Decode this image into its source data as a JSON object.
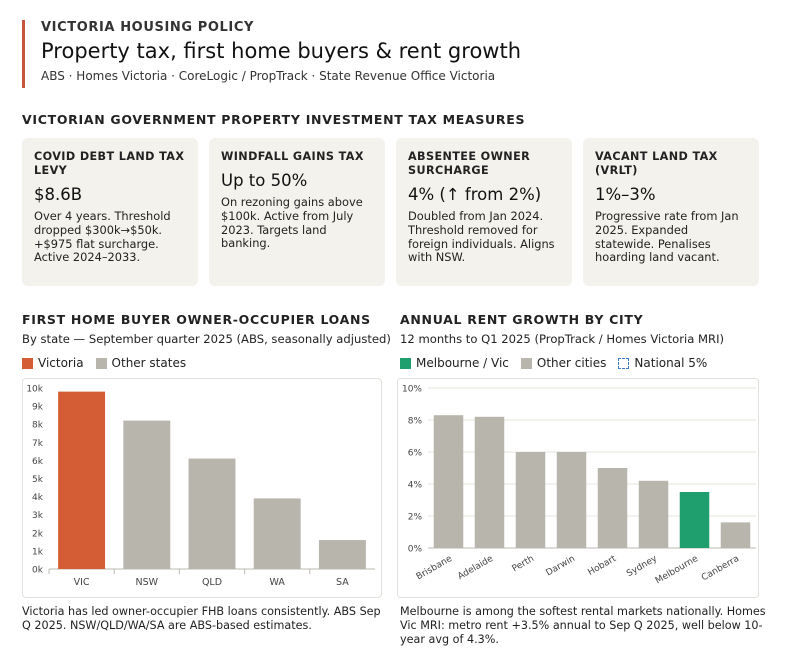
{
  "header": {
    "kicker": "VICTORIA HOUSING POLICY",
    "title": "Property tax, first home buyers & rent growth",
    "sources": "ABS · Homes Victoria · CoreLogic / PropTrack · State Revenue Office Victoria"
  },
  "measures": {
    "title": "VICTORIAN GOVERNMENT PROPERTY INVESTMENT TAX MEASURES",
    "cards": [
      {
        "name": "COVID DEBT LAND TAX LEVY",
        "value": "$8.6B",
        "desc": "Over 4 years. Threshold dropped $300k→$50k. +$975 flat surcharge. Active 2024–2033."
      },
      {
        "name": "WINDFALL GAINS TAX",
        "value": "Up to 50%",
        "desc": "On rezoning gains above $100k. Active from July 2023. Targets land banking."
      },
      {
        "name": "ABSENTEE OWNER SURCHARGE",
        "value": "4% (↑ from 2%)",
        "desc": "Doubled from Jan 2024. Threshold removed for foreign individuals. Aligns with NSW."
      },
      {
        "name": "VACANT LAND TAX (VRLT)",
        "value": "1%–3%",
        "desc": "Progressive rate from Jan 2025. Expanded statewide. Penalises hoarding land vacant."
      }
    ]
  },
  "fhb": {
    "title": "FIRST HOME BUYER OWNER-OCCUPIER LOANS",
    "subtitle": "By state — September quarter 2025 (ABS, seasonally adjusted)",
    "legend": [
      "Victoria",
      "Other states"
    ],
    "note": "Victoria has led owner-occupier FHB loans consistently. ABS Sep Q 2025. NSW/QLD/WA/SA are ABS-based estimates."
  },
  "rent": {
    "title": "ANNUAL RENT GROWTH BY CITY",
    "subtitle": "12 months to Q1 2025 (PropTrack / Homes Victoria MRI)",
    "legend": [
      "Melbourne / Vic",
      "Other cities",
      "National 5%"
    ],
    "note": "Melbourne is among the softest rental markets nationally. Homes Vic MRI: metro rent +3.5% annual to Sep Q 2025, well below 10-year avg of 4.3%."
  },
  "colors": {
    "victoria": "#d45d35",
    "other": "#b8b5ad",
    "melbourne": "#1f9e6e",
    "national": "#3a7bd5",
    "accent": "#c8553d"
  },
  "chart_data": [
    {
      "type": "bar",
      "categories": [
        "VIC",
        "NSW",
        "QLD",
        "WA",
        "SA"
      ],
      "values": [
        9800,
        8200,
        6100,
        3900,
        1600
      ],
      "highlight": "VIC",
      "ylim": [
        0,
        10000
      ],
      "yticks": [
        0,
        1000,
        2000,
        3000,
        4000,
        5000,
        6000,
        7000,
        8000,
        9000,
        10000
      ],
      "ytick_labels": [
        "0k",
        "1k",
        "2k",
        "3k",
        "4k",
        "5k",
        "6k",
        "7k",
        "8k",
        "9k",
        "10k"
      ],
      "grid": false
    },
    {
      "type": "bar",
      "categories": [
        "Brisbane",
        "Adelaide",
        "Perth",
        "Darwin",
        "Hobart",
        "Sydney",
        "Melbourne",
        "Canberra"
      ],
      "values": [
        8.3,
        8.2,
        6.0,
        6.0,
        5.0,
        4.2,
        3.5,
        1.6
      ],
      "highlight": "Melbourne",
      "ylim": [
        0,
        10
      ],
      "yticks": [
        0,
        2,
        4,
        6,
        8,
        10
      ],
      "ytick_labels": [
        "0%",
        "2%",
        "4%",
        "6%",
        "8%",
        "10%"
      ],
      "grid": true
    }
  ]
}
